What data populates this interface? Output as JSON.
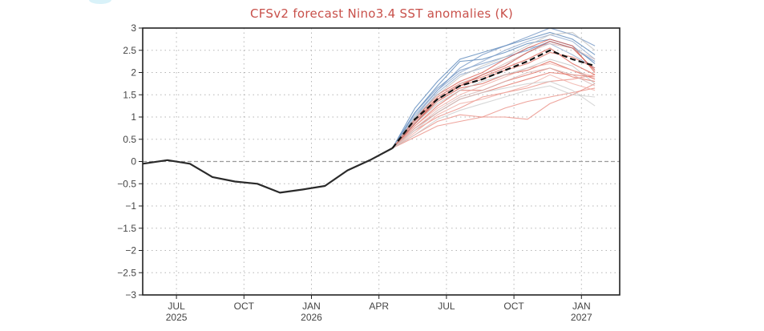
{
  "chart_data": {
    "type": "line",
    "title": "CFSv2 forecast Nino3.4 SST anomalies (K)",
    "xlabel": "",
    "ylabel": "",
    "ylim": [
      -3,
      3
    ],
    "grid": true,
    "legend": "none",
    "x_axis": {
      "start_month_index": 0,
      "end_month_index": 21.2,
      "month_origin": "2025-05-15",
      "ticks": [
        {
          "month_index": 1.5,
          "label": "JUL",
          "sublabel": "2025"
        },
        {
          "month_index": 4.5,
          "label": "OCT",
          "sublabel": ""
        },
        {
          "month_index": 7.5,
          "label": "JAN",
          "sublabel": "2026"
        },
        {
          "month_index": 10.5,
          "label": "APR",
          "sublabel": ""
        },
        {
          "month_index": 13.5,
          "label": "JUL",
          "sublabel": ""
        },
        {
          "month_index": 16.5,
          "label": "OCT",
          "sublabel": ""
        },
        {
          "month_index": 19.5,
          "label": "JAN",
          "sublabel": "2027"
        }
      ]
    },
    "y_ticks": [
      {
        "value": 3,
        "label": "3"
      },
      {
        "value": 2.5,
        "label": "2.5"
      },
      {
        "value": 2,
        "label": "2"
      },
      {
        "value": 1.5,
        "label": "1.5"
      },
      {
        "value": 1,
        "label": "1"
      },
      {
        "value": 0.5,
        "label": "0.5"
      },
      {
        "value": 0,
        "label": "0"
      },
      {
        "value": -0.5,
        "label": "−0.5"
      },
      {
        "value": -1,
        "label": "−1"
      },
      {
        "value": -1.5,
        "label": "−1.5"
      },
      {
        "value": -2,
        "label": "−2"
      },
      {
        "value": -2.5,
        "label": "−2.5"
      },
      {
        "value": -3,
        "label": "−3"
      }
    ],
    "observed": {
      "name": "observed",
      "color": "#2a2a2a",
      "x": [
        0,
        1.1,
        2.1,
        3.1,
        4.1,
        5.1,
        6.1,
        7.1,
        8.1,
        9.1,
        10.1,
        11.1
      ],
      "values": [
        -0.05,
        0.03,
        -0.05,
        -0.35,
        -0.45,
        -0.5,
        -0.7,
        -0.63,
        -0.55,
        -0.2,
        0.03,
        0.3
      ]
    },
    "ensemble_mean": {
      "name": "ensemble mean",
      "color": "#111111",
      "x": [
        11.1,
        12.1,
        13.1,
        14.1,
        15.1,
        16.1,
        17.1,
        18.1,
        19.1,
        20.1
      ],
      "values": [
        0.3,
        0.95,
        1.4,
        1.7,
        1.85,
        2.05,
        2.25,
        2.5,
        2.3,
        2.15
      ]
    },
    "members": {
      "x": [
        11.1,
        12.1,
        13.1,
        14.1,
        15.1,
        16.1,
        17.1,
        18.1,
        19.1,
        20.1
      ],
      "series": [
        {
          "color": "#4f7fb5",
          "values": [
            0.3,
            1.2,
            1.8,
            2.3,
            2.45,
            2.6,
            2.75,
            2.9,
            2.75,
            2.4
          ]
        },
        {
          "color": "#4f7fb5",
          "values": [
            0.3,
            1.1,
            1.7,
            2.25,
            2.3,
            2.45,
            2.65,
            2.75,
            2.6,
            2.2
          ]
        },
        {
          "color": "#6a8fc0",
          "values": [
            0.3,
            1.0,
            1.6,
            2.1,
            2.4,
            2.6,
            2.8,
            3.0,
            2.85,
            2.6
          ]
        },
        {
          "color": "#6a8fc0",
          "values": [
            0.3,
            1.1,
            1.65,
            2.05,
            2.2,
            2.35,
            2.5,
            2.7,
            2.55,
            2.25
          ]
        },
        {
          "color": "#8aa6cc",
          "values": [
            0.3,
            0.95,
            1.55,
            1.95,
            2.1,
            2.3,
            2.55,
            2.65,
            2.4,
            2.1
          ]
        },
        {
          "color": "#8aa6cc",
          "values": [
            0.3,
            1.05,
            1.6,
            2.0,
            2.25,
            2.5,
            2.7,
            2.85,
            2.7,
            2.3
          ]
        },
        {
          "color": "#d9574a",
          "values": [
            0.3,
            0.9,
            1.45,
            1.75,
            1.9,
            2.1,
            2.3,
            2.55,
            2.2,
            1.95
          ]
        },
        {
          "color": "#d9574a",
          "values": [
            0.3,
            0.85,
            1.35,
            1.65,
            1.75,
            1.95,
            2.05,
            2.25,
            2.05,
            1.85
          ]
        },
        {
          "color": "#d9574a",
          "values": [
            0.3,
            0.95,
            1.5,
            1.8,
            2.0,
            2.3,
            2.55,
            2.75,
            2.6,
            2.0
          ]
        },
        {
          "color": "#e06b5e",
          "values": [
            0.3,
            0.8,
            1.25,
            1.6,
            1.6,
            1.8,
            1.95,
            2.1,
            1.9,
            1.8
          ]
        },
        {
          "color": "#e06b5e",
          "values": [
            0.3,
            0.75,
            1.1,
            1.4,
            1.55,
            1.7,
            1.85,
            2.0,
            1.95,
            1.9
          ]
        },
        {
          "color": "#e06b5e",
          "values": [
            0.3,
            0.9,
            1.4,
            1.7,
            1.85,
            2.05,
            2.2,
            2.45,
            2.35,
            2.1
          ]
        },
        {
          "color": "#e8877c",
          "values": [
            0.3,
            0.6,
            0.9,
            1.05,
            1.0,
            1.2,
            1.35,
            1.45,
            1.55,
            1.65
          ]
        },
        {
          "color": "#e8877c",
          "values": [
            0.3,
            0.55,
            0.8,
            0.9,
            1.0,
            1.0,
            0.95,
            1.3,
            1.5,
            1.75
          ]
        },
        {
          "color": "#e8877c",
          "values": [
            0.3,
            0.7,
            1.0,
            1.2,
            1.45,
            1.55,
            1.65,
            1.8,
            1.85,
            1.95
          ]
        },
        {
          "color": "#efa89f",
          "values": [
            0.3,
            0.65,
            1.05,
            1.3,
            1.4,
            1.55,
            1.7,
            1.95,
            1.75,
            1.6
          ]
        },
        {
          "color": "#efa89f",
          "values": [
            0.3,
            0.8,
            1.2,
            1.5,
            1.7,
            1.9,
            2.1,
            2.2,
            2.05,
            1.9
          ]
        },
        {
          "color": "#c9c9c9",
          "values": [
            0.3,
            0.7,
            1.1,
            1.4,
            1.55,
            1.65,
            1.75,
            1.8,
            1.6,
            1.25
          ]
        },
        {
          "color": "#c9c9c9",
          "values": [
            0.3,
            0.6,
            0.95,
            1.15,
            1.3,
            1.45,
            1.6,
            1.7,
            1.5,
            1.45
          ]
        },
        {
          "color": "#bdbdbd",
          "values": [
            0.3,
            0.85,
            1.3,
            1.6,
            1.8,
            1.95,
            2.1,
            2.3,
            2.15,
            1.75
          ]
        },
        {
          "color": "#bdbdbd",
          "values": [
            0.3,
            1.0,
            1.5,
            1.9,
            2.15,
            2.35,
            2.6,
            2.85,
            2.9,
            2.5
          ]
        },
        {
          "color": "#d4b3b0",
          "values": [
            0.3,
            0.75,
            1.15,
            1.45,
            1.6,
            1.8,
            2.0,
            2.1,
            1.95,
            1.7
          ]
        },
        {
          "color": "#d4b3b0",
          "values": [
            0.3,
            0.9,
            1.35,
            1.75,
            1.95,
            2.2,
            2.45,
            2.65,
            2.55,
            2.3
          ]
        },
        {
          "color": "#c85248",
          "values": [
            0.3,
            0.85,
            1.4,
            1.7,
            1.95,
            2.15,
            2.45,
            2.7,
            2.55,
            2.05
          ]
        }
      ]
    }
  }
}
